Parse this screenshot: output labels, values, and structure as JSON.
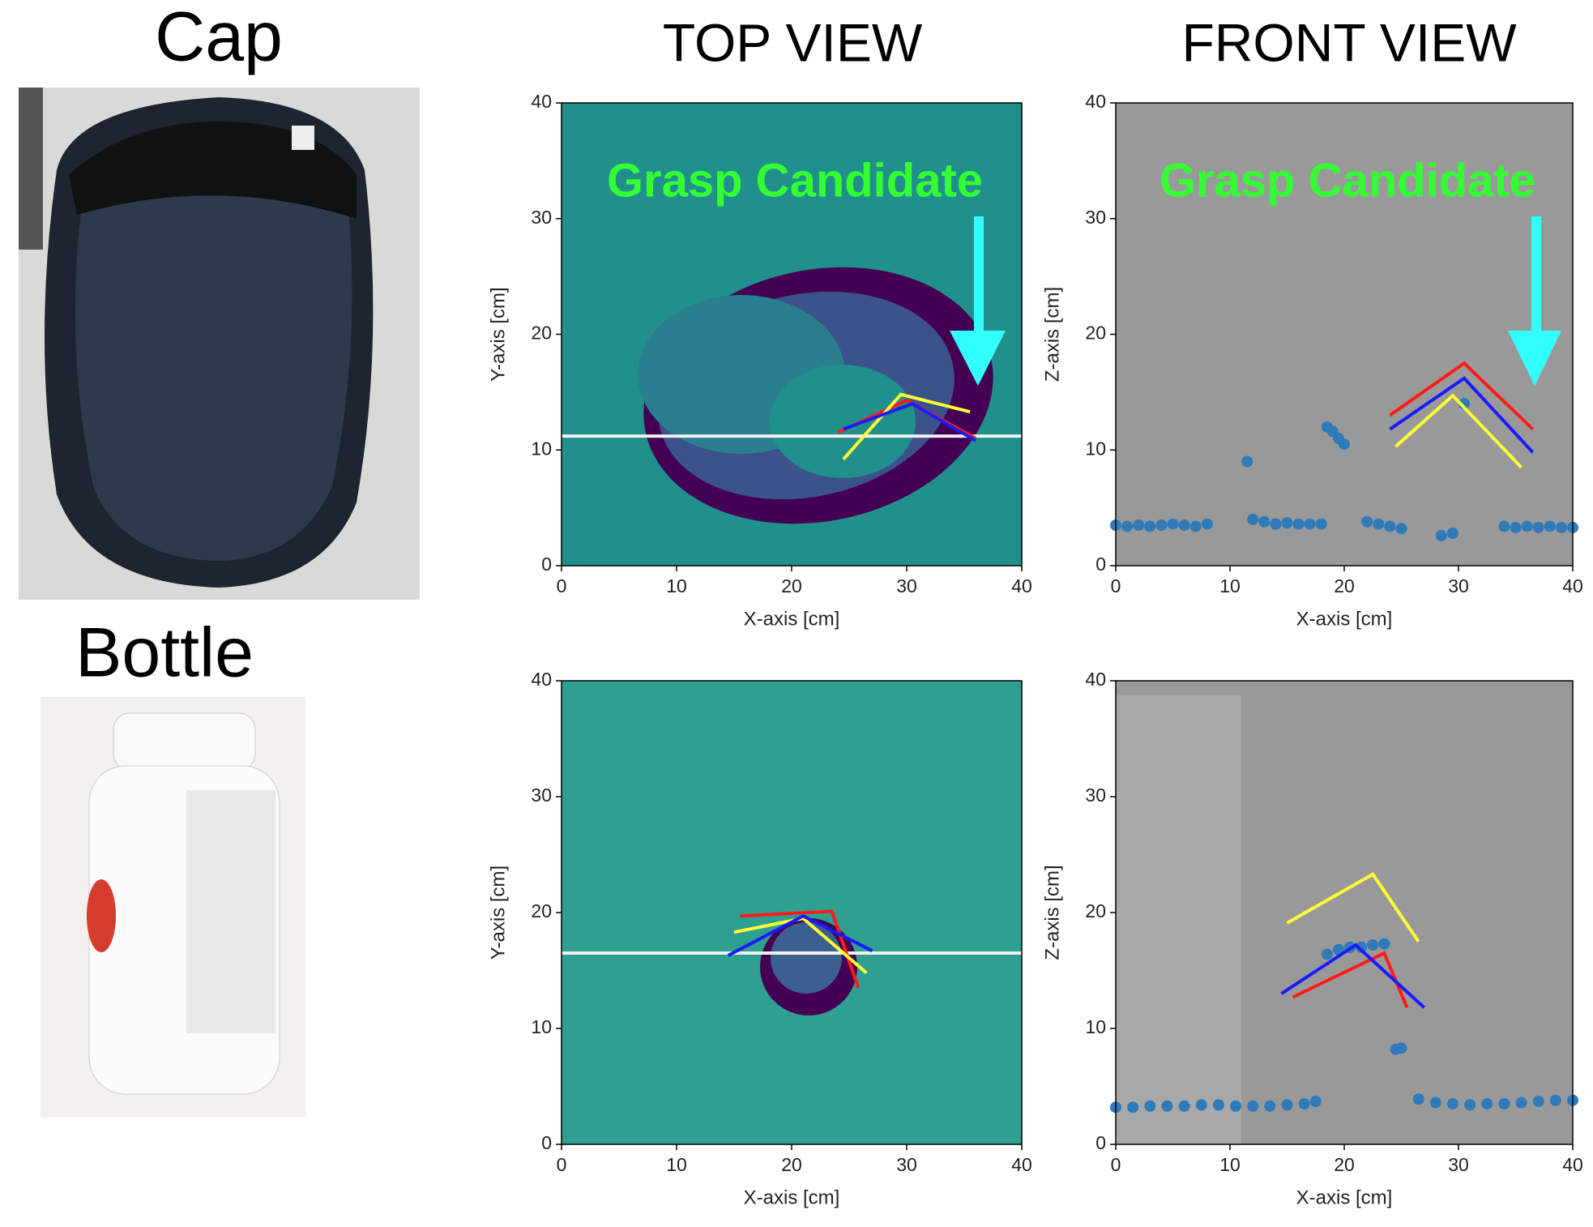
{
  "figure": {
    "column_titles": [
      "TOP VIEW",
      "FRONT VIEW"
    ],
    "row_labels": [
      "Cap",
      "Bottle"
    ]
  },
  "chart_data": [
    {
      "type": "line",
      "background": "#21908d",
      "annotation": "Grasp Candidate",
      "xlabel": "X-axis [cm]",
      "ylabel": "Y-axis [cm]",
      "xlim": [
        0,
        40
      ],
      "ylim": [
        0,
        40
      ],
      "xticks": [
        0,
        10,
        20,
        30,
        40
      ],
      "yticks": [
        0,
        10,
        20,
        30,
        40
      ],
      "series": [
        {
          "color": "#f0f0f0",
          "x": [
            0,
            40
          ],
          "values": [
            11.2,
            11.2
          ]
        },
        {
          "color": "#ff1a1a",
          "x": [
            24,
            30,
            36
          ],
          "values": [
            11.5,
            14.3,
            11
          ]
        },
        {
          "color": "#ffff33",
          "x": [
            24.5,
            29.5,
            35.5
          ],
          "values": [
            9.2,
            14.8,
            13.3
          ]
        },
        {
          "color": "#1a1aff",
          "x": [
            24.5,
            30.5,
            36
          ],
          "values": [
            11.8,
            14,
            10.8
          ]
        }
      ]
    },
    {
      "type": "line",
      "background": "#999999",
      "annotation": "Grasp Candidate",
      "xlabel": "X-axis [cm]",
      "ylabel": "Z-axis [cm]",
      "xlim": [
        0,
        40
      ],
      "ylim": [
        0,
        40
      ],
      "xticks": [
        0,
        10,
        20,
        30,
        40
      ],
      "yticks": [
        0,
        10,
        20,
        30,
        40
      ],
      "series": [
        {
          "type": "scatter",
          "color": "#2f7ab8",
          "x": [
            0,
            1,
            2,
            3,
            4,
            5,
            6,
            7,
            8,
            11.5,
            12,
            13,
            14,
            15,
            16,
            17,
            18,
            18.5,
            19,
            19.5,
            20,
            22,
            23,
            24,
            25,
            28.5,
            29.5,
            30.5,
            34,
            35,
            36,
            37,
            38,
            39,
            40
          ],
          "values": [
            3.5,
            3.4,
            3.5,
            3.4,
            3.5,
            3.6,
            3.5,
            3.4,
            3.6,
            9,
            4,
            3.8,
            3.6,
            3.7,
            3.6,
            3.6,
            3.6,
            12,
            11.6,
            11,
            10.5,
            3.8,
            3.6,
            3.4,
            3.2,
            2.6,
            2.8,
            14,
            3.4,
            3.3,
            3.4,
            3.3,
            3.4,
            3.3,
            3.3
          ]
        },
        {
          "color": "#ff1a1a",
          "x": [
            24,
            30.5,
            36.5
          ],
          "values": [
            13,
            17.5,
            11.8
          ]
        },
        {
          "color": "#1a1aff",
          "x": [
            24,
            30.5,
            36.5
          ],
          "values": [
            11.8,
            16.2,
            9.8
          ]
        },
        {
          "color": "#ffff33",
          "x": [
            24.5,
            29.5,
            35.5
          ],
          "values": [
            10.3,
            14.7,
            8.5
          ]
        }
      ]
    },
    {
      "type": "line",
      "background": "#2e9f90",
      "xlabel": "X-axis [cm]",
      "ylabel": "Y-axis [cm]",
      "xlim": [
        0,
        40
      ],
      "ylim": [
        0,
        40
      ],
      "xticks": [
        0,
        10,
        20,
        30,
        40
      ],
      "yticks": [
        0,
        10,
        20,
        30,
        40
      ],
      "series": [
        {
          "color": "#f0f0f0",
          "x": [
            0,
            40
          ],
          "values": [
            16.5,
            16.5
          ]
        },
        {
          "color": "#ff1a1a",
          "x": [
            15.5,
            23.5,
            25.8
          ],
          "values": [
            19.7,
            20.1,
            13.5
          ]
        },
        {
          "color": "#ffff33",
          "x": [
            15,
            21,
            26.5
          ],
          "values": [
            18.3,
            19.5,
            14.8
          ]
        },
        {
          "color": "#1a1aff",
          "x": [
            14.5,
            21,
            27
          ],
          "values": [
            16.3,
            19.7,
            16.7
          ]
        }
      ]
    },
    {
      "type": "line",
      "background": "#999999",
      "xlabel": "X-axis [cm]",
      "ylabel": "Z-axis [cm]",
      "xlim": [
        0,
        40
      ],
      "ylim": [
        0,
        40
      ],
      "xticks": [
        0,
        10,
        20,
        30,
        40
      ],
      "yticks": [
        0,
        10,
        20,
        30,
        40
      ],
      "series": [
        {
          "type": "scatter",
          "color": "#2f7ab8",
          "x": [
            0,
            1.5,
            3,
            4.5,
            6,
            7.5,
            9,
            10.5,
            12,
            13.5,
            15,
            16.5,
            17.5,
            18.5,
            19.5,
            20.5,
            21.5,
            22.5,
            23.5,
            24.5,
            25,
            26.5,
            28,
            29.5,
            31,
            32.5,
            34,
            35.5,
            37,
            38.5,
            40
          ],
          "values": [
            3.2,
            3.2,
            3.3,
            3.3,
            3.3,
            3.4,
            3.4,
            3.3,
            3.3,
            3.3,
            3.4,
            3.5,
            3.7,
            16.4,
            16.8,
            17,
            17,
            17.2,
            17.3,
            8.2,
            8.3,
            3.9,
            3.6,
            3.5,
            3.4,
            3.5,
            3.5,
            3.6,
            3.7,
            3.8,
            3.8
          ]
        },
        {
          "color": "#ffff33",
          "x": [
            15,
            22.5,
            26.5
          ],
          "values": [
            19.1,
            23.3,
            17.5
          ]
        },
        {
          "color": "#ff1a1a",
          "x": [
            15.5,
            23.5,
            25.5
          ],
          "values": [
            12.7,
            16.5,
            11.8
          ]
        },
        {
          "color": "#1a1aff",
          "x": [
            14.5,
            21,
            27
          ],
          "values": [
            13,
            17.2,
            11.8
          ]
        }
      ]
    }
  ]
}
